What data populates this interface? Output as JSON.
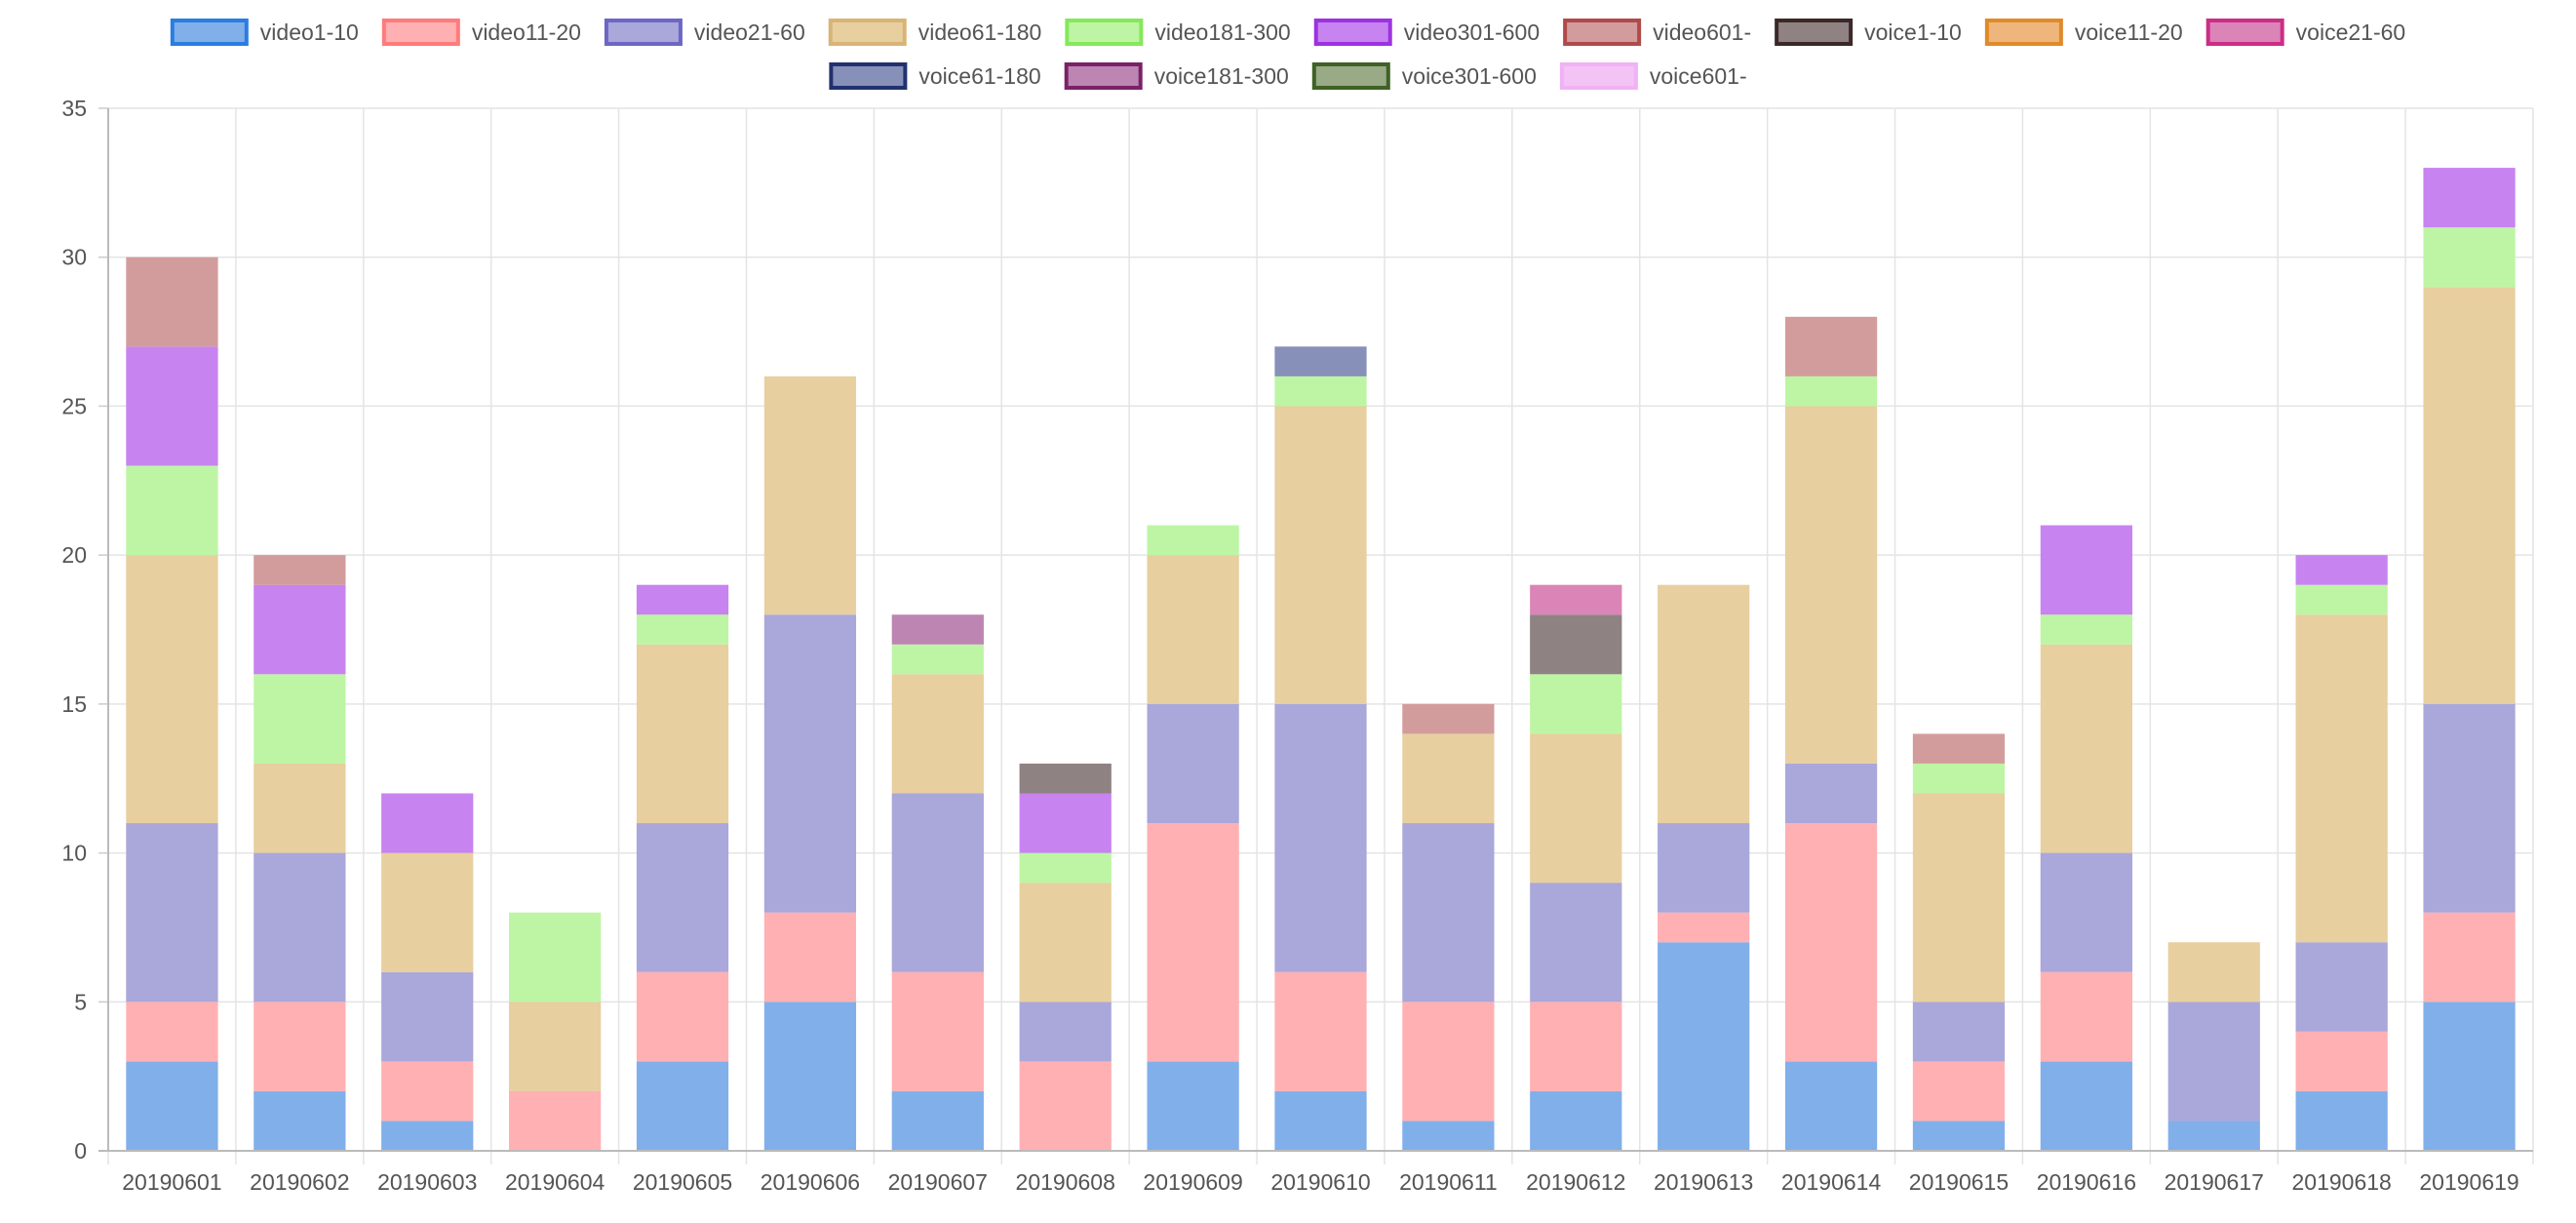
{
  "chart_data": {
    "type": "bar",
    "stacked": true,
    "title": "",
    "xlabel": "",
    "ylabel": "",
    "ylim": [
      0,
      35
    ],
    "yticks": [
      0,
      5,
      10,
      15,
      20,
      25,
      30,
      35
    ],
    "grid": true,
    "legend_position": "top",
    "categories": [
      "20190601",
      "20190602",
      "20190603",
      "20190604",
      "20190605",
      "20190606",
      "20190607",
      "20190608",
      "20190609",
      "20190610",
      "20190611",
      "20190612",
      "20190613",
      "20190614",
      "20190615",
      "20190616",
      "20190617",
      "20190618",
      "20190619"
    ],
    "series": [
      {
        "name": "video1-10",
        "border": "#2b7de0",
        "fill": "#81afea",
        "values": [
          3,
          2,
          1,
          0,
          3,
          5,
          2,
          0,
          3,
          2,
          1,
          2,
          7,
          3,
          1,
          3,
          1,
          2,
          5
        ]
      },
      {
        "name": "video11-20",
        "border": "#ff7b7b",
        "fill": "#ffb0b3",
        "values": [
          2,
          3,
          2,
          2,
          3,
          3,
          4,
          3,
          8,
          4,
          4,
          3,
          1,
          8,
          2,
          3,
          0,
          2,
          3
        ]
      },
      {
        "name": "video21-60",
        "border": "#6e66c4",
        "fill": "#aaa7da",
        "values": [
          6,
          5,
          3,
          0,
          5,
          10,
          6,
          2,
          4,
          9,
          6,
          4,
          3,
          2,
          2,
          4,
          4,
          3,
          7
        ]
      },
      {
        "name": "video61-180",
        "border": "#d9b477",
        "fill": "#e7cf9f",
        "values": [
          9,
          3,
          4,
          3,
          6,
          8,
          4,
          4,
          5,
          10,
          3,
          5,
          8,
          12,
          7,
          7,
          2,
          11,
          14
        ]
      },
      {
        "name": "video181-300",
        "border": "#85e85a",
        "fill": "#bdf5a4",
        "values": [
          3,
          3,
          0,
          3,
          1,
          0,
          1,
          1,
          1,
          1,
          0,
          2,
          0,
          1,
          1,
          1,
          0,
          1,
          2
        ]
      },
      {
        "name": "video301-600",
        "border": "#9d32e0",
        "fill": "#c783ef",
        "values": [
          4,
          3,
          2,
          0,
          1,
          0,
          0,
          2,
          0,
          0,
          0,
          0,
          0,
          0,
          0,
          3,
          0,
          1,
          2
        ]
      },
      {
        "name": "video601-",
        "border": "#b04a4a",
        "fill": "#d39c9c",
        "values": [
          3,
          1,
          0,
          0,
          0,
          0,
          0,
          0,
          0,
          0,
          1,
          0,
          0,
          2,
          1,
          0,
          0,
          0,
          0
        ]
      },
      {
        "name": "voice1-10",
        "border": "#3c2828",
        "fill": "#8e8282",
        "values": [
          0,
          0,
          0,
          0,
          0,
          0,
          0,
          1,
          0,
          0,
          0,
          2,
          0,
          0,
          0,
          0,
          0,
          0,
          0
        ]
      },
      {
        "name": "voice11-20",
        "border": "#e08a2a",
        "fill": "#eeb67c",
        "values": [
          0,
          0,
          0,
          0,
          0,
          0,
          0,
          0,
          0,
          0,
          0,
          0,
          0,
          0,
          0,
          0,
          0,
          0,
          0
        ]
      },
      {
        "name": "voice21-60",
        "border": "#cc2d86",
        "fill": "#db84b7",
        "values": [
          0,
          0,
          0,
          0,
          0,
          0,
          0,
          0,
          0,
          0,
          0,
          1,
          0,
          0,
          0,
          0,
          0,
          0,
          0
        ]
      },
      {
        "name": "voice61-180",
        "border": "#22316e",
        "fill": "#8790b8",
        "values": [
          0,
          0,
          0,
          0,
          0,
          0,
          0,
          0,
          0,
          1,
          0,
          0,
          0,
          0,
          0,
          0,
          0,
          0,
          0
        ]
      },
      {
        "name": "voice181-300",
        "border": "#7a2168",
        "fill": "#bd85b2",
        "values": [
          0,
          0,
          0,
          0,
          0,
          0,
          1,
          0,
          0,
          0,
          0,
          0,
          0,
          0,
          0,
          0,
          0,
          0,
          0
        ]
      },
      {
        "name": "voice301-600",
        "border": "#3f6125",
        "fill": "#98aa86",
        "values": [
          0,
          0,
          0,
          0,
          0,
          0,
          0,
          0,
          0,
          0,
          0,
          0,
          0,
          0,
          0,
          0,
          0,
          0,
          0
        ]
      },
      {
        "name": "voice601-",
        "border": "#f0b2f4",
        "fill": "#f3c3f6",
        "values": [
          0,
          0,
          0,
          0,
          0,
          0,
          0,
          0,
          0,
          0,
          0,
          0,
          0,
          0,
          0,
          0,
          0,
          0,
          0
        ]
      }
    ]
  }
}
